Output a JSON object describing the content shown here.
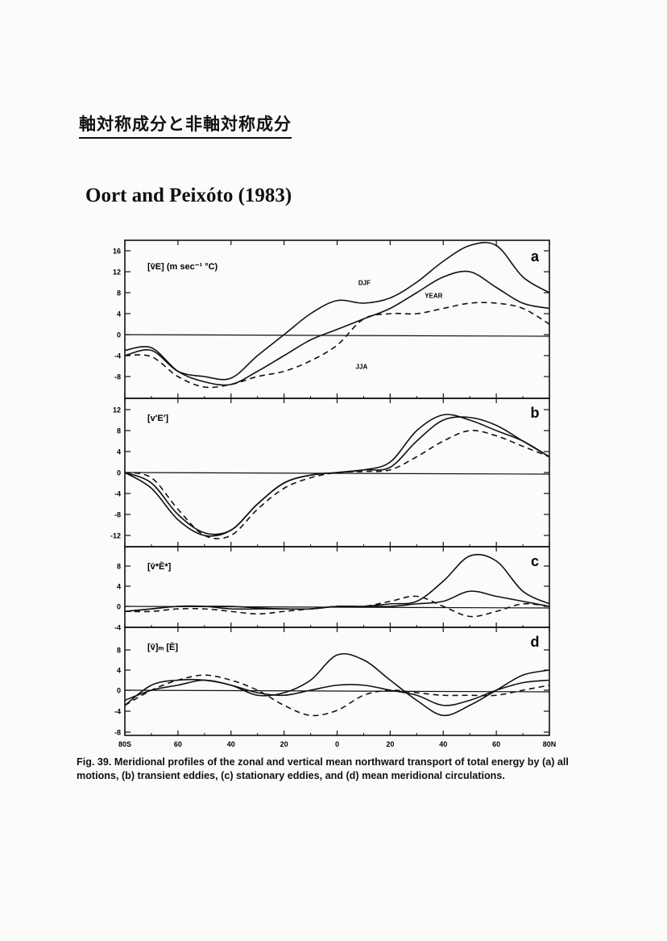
{
  "page": {
    "heading_jp": "軸対称成分と非軸対称成分",
    "reference": "Oort and Peixóto (1983)",
    "caption_label": "Fig. 39.",
    "caption_text": "Meridional profiles of the zonal and vertical mean northward transport of total energy by (a) all motions, (b) transient eddies, (c) stationary eddies, and (d) mean meridional circulations."
  },
  "chart_data": [
    {
      "type": "line",
      "panel": "a",
      "ylabel_text": "[v̄E] (m sec⁻¹ °C)",
      "yticks": [
        "16",
        "12",
        "8",
        "4",
        "0",
        "-4",
        "-8"
      ],
      "ylim": [
        -12,
        18
      ],
      "x": [
        -80,
        -70,
        -60,
        -50,
        -40,
        -30,
        -20,
        -10,
        0,
        10,
        20,
        30,
        40,
        50,
        60,
        70,
        80
      ],
      "series": [
        {
          "name": "DJF",
          "dash": false,
          "values": [
            -4,
            -3,
            -7,
            -8,
            -8.3,
            -4,
            0,
            4,
            6.5,
            6,
            7,
            10,
            14,
            17,
            17,
            11,
            8
          ]
        },
        {
          "name": "YEAR",
          "dash": false,
          "values": [
            -3,
            -2.5,
            -7,
            -9,
            -9.5,
            -7,
            -4,
            -1,
            1,
            3,
            5,
            8,
            11,
            12,
            9,
            6,
            5
          ]
        },
        {
          "name": "JJA",
          "dash": true,
          "values": [
            -4,
            -4.2,
            -8,
            -10,
            -9.5,
            -8,
            -7,
            -5,
            -2,
            3,
            4,
            4,
            5,
            6,
            6,
            5,
            2
          ]
        }
      ],
      "labels": [
        {
          "text": "DJF",
          "x": 8,
          "y": 9.5
        },
        {
          "text": "YEAR",
          "x": 33,
          "y": 7
        },
        {
          "text": "JJA",
          "x": 7,
          "y": -6.5
        }
      ]
    },
    {
      "type": "line",
      "panel": "b",
      "ylabel_text": "[v'E']",
      "yticks": [
        "12",
        "8",
        "4",
        "0",
        "-4",
        "-8",
        "-12"
      ],
      "ylim": [
        -13,
        13
      ],
      "x": [
        -80,
        -70,
        -60,
        -50,
        -40,
        -30,
        -20,
        -10,
        0,
        10,
        20,
        30,
        40,
        50,
        60,
        70,
        80
      ],
      "series": [
        {
          "name": "DJF",
          "dash": false,
          "values": [
            0,
            -3,
            -9,
            -12,
            -11,
            -6,
            -2,
            -0.5,
            0,
            0.5,
            2,
            8,
            11,
            10,
            8,
            6,
            3
          ]
        },
        {
          "name": "YEAR",
          "dash": false,
          "values": [
            0,
            -2,
            -8,
            -11.5,
            -11,
            -6,
            -2,
            -0.5,
            0,
            0.5,
            1,
            6,
            10,
            10.5,
            9,
            6,
            3
          ]
        },
        {
          "name": "JJA",
          "dash": true,
          "values": [
            0,
            -1,
            -7,
            -12,
            -12,
            -7,
            -3,
            -1,
            0,
            0.2,
            0.5,
            3,
            6,
            8,
            7,
            5,
            3
          ]
        }
      ]
    },
    {
      "type": "line",
      "panel": "c",
      "ylabel_text": "[v̄*Ē*]",
      "yticks": [
        "8",
        "4",
        "0",
        "-4"
      ],
      "ylim": [
        -4,
        11
      ],
      "x": [
        -80,
        -70,
        -60,
        -50,
        -40,
        -30,
        -20,
        -10,
        0,
        10,
        20,
        30,
        40,
        50,
        60,
        70,
        80
      ],
      "series": [
        {
          "name": "DJF",
          "dash": false,
          "values": [
            -1,
            -0.5,
            0,
            0,
            0,
            -0.3,
            -0.5,
            -0.5,
            0,
            0,
            0.5,
            1,
            5,
            10,
            9,
            3,
            0.5
          ]
        },
        {
          "name": "YEAR",
          "dash": false,
          "values": [
            -1,
            -0.5,
            0,
            0,
            -0.5,
            -0.5,
            -0.5,
            -0.5,
            0,
            0,
            0,
            0.5,
            1,
            3,
            2,
            1,
            0
          ]
        },
        {
          "name": "JJA",
          "dash": true,
          "values": [
            -1,
            -1,
            -0.5,
            -0.5,
            -1,
            -1.5,
            -1,
            -0.5,
            0,
            0,
            1,
            2,
            0,
            -2,
            -1,
            0.5,
            0
          ]
        }
      ]
    },
    {
      "type": "line",
      "panel": "d",
      "ylabel_text": "[v̄]ₘ [Ē]",
      "yticks": [
        "8",
        "4",
        "0",
        "-4",
        "-8"
      ],
      "ylim": [
        -8,
        10
      ],
      "x": [
        -80,
        -70,
        -60,
        -50,
        -40,
        -30,
        -20,
        -10,
        0,
        10,
        20,
        30,
        40,
        50,
        60,
        70,
        80
      ],
      "series": [
        {
          "name": "DJF",
          "dash": false,
          "values": [
            -3,
            1,
            2,
            2,
            1,
            -1,
            -0.5,
            2,
            7,
            6,
            2,
            -2,
            -5,
            -3,
            0,
            3,
            4
          ]
        },
        {
          "name": "YEAR",
          "dash": false,
          "values": [
            -2,
            0,
            1,
            2,
            1,
            -0.5,
            -1,
            0,
            1,
            1,
            0,
            -1,
            -3,
            -2,
            0,
            1.5,
            2
          ]
        },
        {
          "name": "JJA",
          "dash": true,
          "values": [
            -3,
            0,
            2,
            3,
            2,
            0,
            -3,
            -5,
            -4,
            -1,
            0,
            -0.5,
            -1,
            -1,
            -1,
            0,
            1
          ]
        }
      ]
    }
  ],
  "x_axis": {
    "ticklabels": [
      "80S",
      "60",
      "40",
      "20",
      "0",
      "20",
      "40",
      "60",
      "80N"
    ],
    "tick_values": [
      -80,
      -60,
      -40,
      -20,
      0,
      20,
      40,
      60,
      80
    ]
  }
}
